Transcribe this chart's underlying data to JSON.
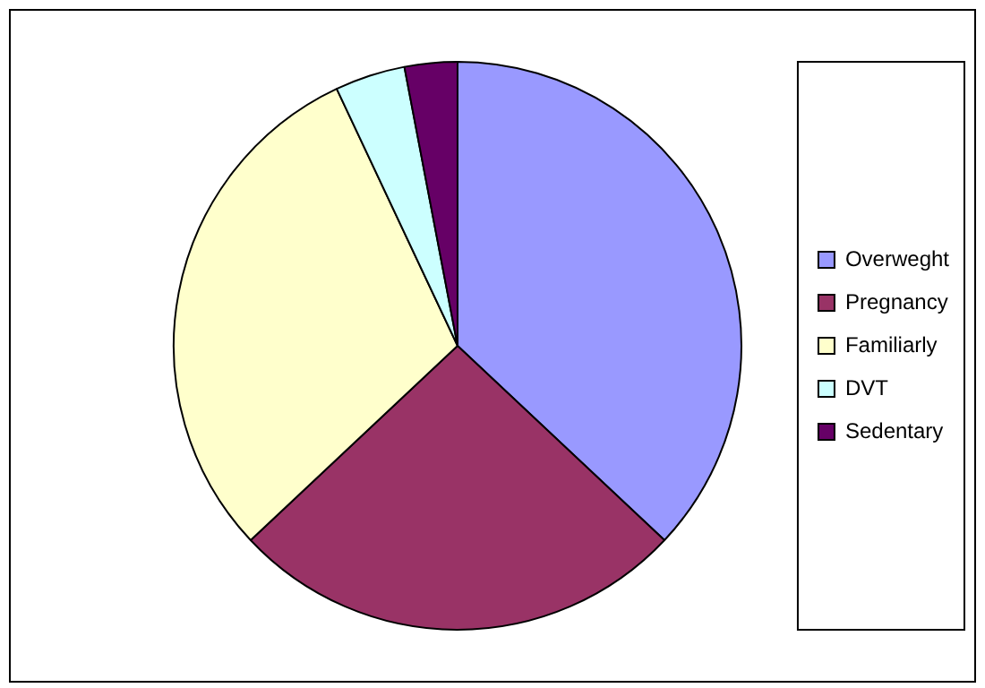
{
  "chart_data": {
    "type": "pie",
    "categories": [
      "Overweght",
      "Pregnancy",
      "Familiarly",
      "DVT",
      "Sedentary"
    ],
    "values": [
      37,
      26,
      30,
      4,
      3
    ],
    "colors": [
      "#9999ff",
      "#993366",
      "#ffffcc",
      "#ccffff",
      "#660066"
    ],
    "legend": "right"
  }
}
